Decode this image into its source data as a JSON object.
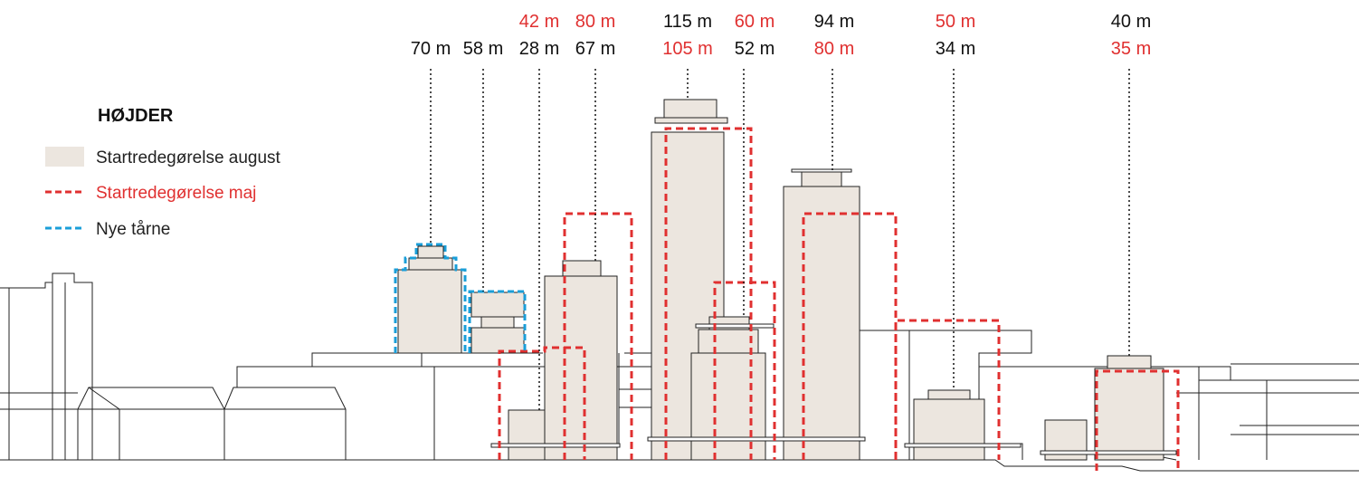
{
  "legend": {
    "title": "HØJDER",
    "items": [
      {
        "label": "Startredegørelse august",
        "swatch": "fill",
        "color": "#ece6df",
        "text_color": "#222222"
      },
      {
        "label": "Startredegørelse maj",
        "swatch": "dash-red",
        "color": "#e03030",
        "text_color": "#e03030"
      },
      {
        "label": "Nye tårne",
        "swatch": "dash-blue",
        "color": "#1a9ed8",
        "text_color": "#222222"
      }
    ]
  },
  "colors": {
    "august_fill": "#ece6df",
    "outline": "#222222",
    "maj_red": "#e03030",
    "new_blue": "#1a9ed8"
  },
  "heights": [
    {
      "id": "tower-1",
      "august": "70 m"
    },
    {
      "id": "tower-2",
      "august": "58 m"
    },
    {
      "id": "tower-3",
      "maj": "42 m",
      "august": "28 m"
    },
    {
      "id": "tower-4",
      "maj": "80 m",
      "august": "67 m"
    },
    {
      "id": "tower-5",
      "august": "115 m",
      "maj": "105 m"
    },
    {
      "id": "tower-6",
      "maj": "60 m",
      "august": "52 m"
    },
    {
      "id": "tower-7",
      "august": "94 m",
      "maj": "80 m"
    },
    {
      "id": "tower-8",
      "maj": "50 m",
      "august": "34 m"
    },
    {
      "id": "tower-9",
      "august": "40 m",
      "maj": "35 m"
    }
  ]
}
